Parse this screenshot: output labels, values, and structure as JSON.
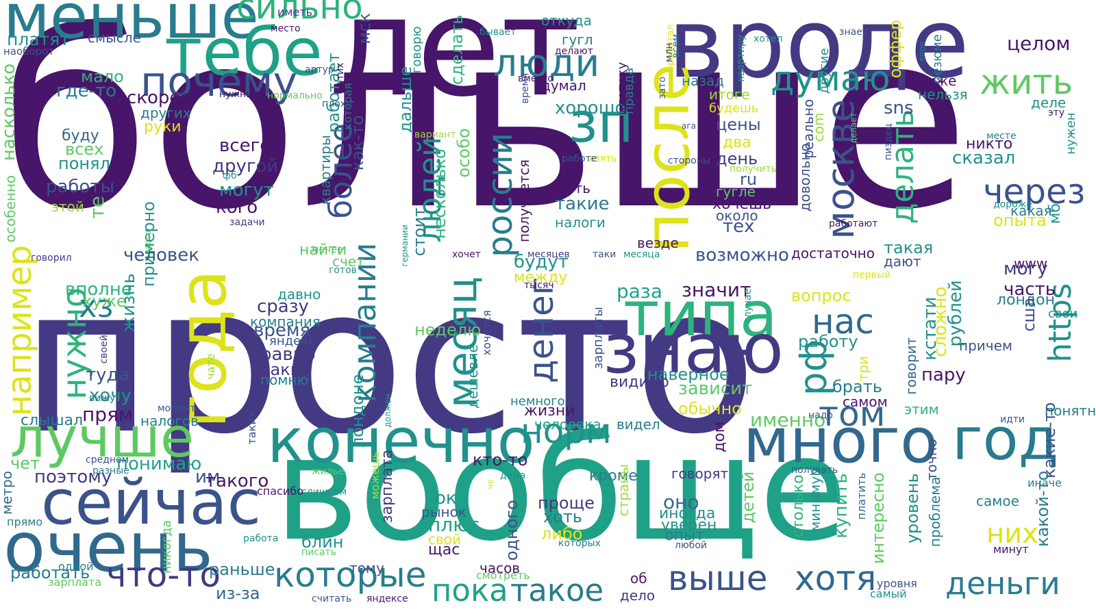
{
  "palette": {
    "dark_purple": "#471569",
    "indigo": "#443983",
    "slate_blue": "#3b528b",
    "steel_blue": "#31688e",
    "teal_blue": "#287c8e",
    "teal": "#21918c",
    "sea_green": "#1fa187",
    "green": "#2eb37c",
    "light_green": "#5ec962",
    "lime": "#a0da39",
    "yellow": "#dde318"
  },
  "words": [
    {
      "text": "просто",
      "c": "indigo"
    },
    {
      "text": "больше",
      "c": "dark_purple"
    },
    {
      "text": "вообще",
      "c": "sea_green"
    },
    {
      "text": "лет",
      "c": "dark_purple"
    },
    {
      "text": "вроде",
      "c": "indigo"
    },
    {
      "text": "меньше",
      "c": "teal_blue"
    },
    {
      "text": "тебе",
      "c": "sea_green"
    },
    {
      "text": "сильно",
      "c": "green"
    },
    {
      "text": "почему",
      "c": "slate_blue"
    },
    {
      "text": "люди",
      "c": "teal_blue"
    },
    {
      "text": "зп",
      "c": "teal"
    },
    {
      "text": "после",
      "c": "yellow"
    },
    {
      "text": "думаю",
      "c": "teal"
    },
    {
      "text": "жить",
      "c": "light_green"
    },
    {
      "text": "целом",
      "c": "dark_purple"
    },
    {
      "text": "типа",
      "c": "green"
    },
    {
      "text": "знаю",
      "c": "indigo"
    },
    {
      "text": "года",
      "c": "yellow"
    },
    {
      "text": "конечно",
      "c": "teal"
    },
    {
      "text": "много",
      "c": "steel_blue"
    },
    {
      "text": "год",
      "c": "teal_blue"
    },
    {
      "text": "лучше",
      "c": "light_green"
    },
    {
      "text": "сейчас",
      "c": "slate_blue"
    },
    {
      "text": "очень",
      "c": "steel_blue"
    },
    {
      "text": "москве",
      "c": "slate_blue"
    },
    {
      "text": "через",
      "c": "slate_blue"
    },
    {
      "text": "россии",
      "c": "teal_blue"
    },
    {
      "text": "месяц",
      "c": "teal"
    },
    {
      "text": "денег",
      "c": "slate_blue"
    },
    {
      "text": "нас",
      "c": "steel_blue"
    },
    {
      "text": "том",
      "c": "steel_blue"
    },
    {
      "text": "рф",
      "c": "teal"
    },
    {
      "text": "норм",
      "c": "teal"
    },
    {
      "text": "которые",
      "c": "teal_blue"
    },
    {
      "text": "пока",
      "c": "sea_green"
    },
    {
      "text": "такое",
      "c": "teal_blue"
    },
    {
      "text": "выше",
      "c": "slate_blue"
    },
    {
      "text": "хотя",
      "c": "steel_blue"
    },
    {
      "text": "деньги",
      "c": "teal_blue"
    },
    {
      "text": "что-то",
      "c": "indigo"
    },
    {
      "text": "например",
      "c": "yellow"
    },
    {
      "text": "нужно",
      "c": "green"
    },
    {
      "text": "компании",
      "c": "teal_blue"
    },
    {
      "text": "людей",
      "c": "teal"
    },
    {
      "text": "более",
      "c": "slate_blue"
    },
    {
      "text": "делать",
      "c": "green"
    },
    {
      "text": "https",
      "c": "teal"
    },
    {
      "text": "хз",
      "c": "teal_blue"
    },
    {
      "text": "платят",
      "c": "teal"
    },
    {
      "text": "смысле",
      "c": "slate_blue"
    },
    {
      "text": "наоборот",
      "c": "slate_blue"
    },
    {
      "text": "мало",
      "c": "green"
    },
    {
      "text": "где-то",
      "c": "teal_blue"
    },
    {
      "text": "скорее",
      "c": "dark_purple"
    },
    {
      "text": "других",
      "c": "teal_blue"
    },
    {
      "text": "руки",
      "c": "yellow"
    },
    {
      "text": "буду",
      "c": "steel_blue"
    },
    {
      "text": "всех",
      "c": "light_green"
    },
    {
      "text": "понял",
      "c": "teal"
    },
    {
      "text": "работы",
      "c": "slate_blue"
    },
    {
      "text": "те",
      "c": "light_green"
    },
    {
      "text": "этой",
      "c": "lime"
    },
    {
      "text": "насколько",
      "c": "light_green"
    },
    {
      "text": "особенно",
      "c": "light_green"
    },
    {
      "text": "примерно",
      "c": "teal"
    },
    {
      "text": "человек",
      "c": "slate_blue"
    },
    {
      "text": "вполне",
      "c": "green"
    },
    {
      "text": "хуже",
      "c": "light_green"
    },
    {
      "text": "жизнь",
      "c": "teal"
    },
    {
      "text": "туда",
      "c": "slate_blue"
    },
    {
      "text": "хочу",
      "c": "teal"
    },
    {
      "text": "прям",
      "c": "dark_purple"
    },
    {
      "text": "слышал",
      "c": "teal_blue"
    },
    {
      "text": "налогов",
      "c": "teal_blue"
    },
    {
      "text": "понимаю",
      "c": "sea_green"
    },
    {
      "text": "чет",
      "c": "light_green"
    },
    {
      "text": "поэтому",
      "c": "indigo"
    },
    {
      "text": "им",
      "c": "slate_blue"
    },
    {
      "text": "такого",
      "c": "dark_purple"
    },
    {
      "text": "работать",
      "c": "teal_blue"
    },
    {
      "text": "раньше",
      "c": "teal_blue"
    },
    {
      "text": "из-за",
      "c": "steel_blue"
    },
    {
      "text": "метро",
      "c": "steel_blue"
    },
    {
      "text": "прямо",
      "c": "teal_blue"
    },
    {
      "text": "одной",
      "c": "teal_blue"
    },
    {
      "text": "зарплата",
      "c": "light_green"
    },
    {
      "text": "никогда",
      "c": "light_green"
    },
    {
      "text": "работа",
      "c": "teal"
    },
    {
      "text": "писать",
      "c": "light_green"
    },
    {
      "text": "считать",
      "c": "slate_blue"
    },
    {
      "text": "яндексе",
      "c": "dark_purple"
    },
    {
      "text": "всего",
      "c": "dark_purple"
    },
    {
      "text": "другой",
      "c": "indigo"
    },
    {
      "text": "могут",
      "c": "teal"
    },
    {
      "text": "кого",
      "c": "dark_purple"
    },
    {
      "text": "сразу",
      "c": "indigo"
    },
    {
      "text": "время",
      "c": "slate_blue"
    },
    {
      "text": "равно",
      "c": "indigo"
    },
    {
      "text": "какие",
      "c": "indigo"
    },
    {
      "text": "помню",
      "c": "teal_blue"
    },
    {
      "text": "компания",
      "c": "teal_blue"
    },
    {
      "text": "яндекс",
      "c": "slate_blue"
    },
    {
      "text": "давно",
      "c": "teal"
    },
    {
      "text": "ок",
      "c": "teal"
    },
    {
      "text": "рынок",
      "c": "slate_blue"
    },
    {
      "text": "плюс",
      "c": "sea_green"
    },
    {
      "text": "блин",
      "c": "teal"
    },
    {
      "text": "свой",
      "c": "yellow"
    },
    {
      "text": "щас",
      "c": "dark_purple"
    },
    {
      "text": "тому",
      "c": "slate_blue"
    },
    {
      "text": "часов",
      "c": "dark_purple"
    },
    {
      "text": "смотреть",
      "c": "light_green"
    },
    {
      "text": "дело",
      "c": "indigo"
    },
    {
      "text": "об",
      "c": "dark_purple"
    },
    {
      "text": "проще",
      "c": "indigo"
    },
    {
      "text": "хоть",
      "c": "teal_blue"
    },
    {
      "text": "либо",
      "c": "yellow"
    },
    {
      "text": "которых",
      "c": "teal_blue"
    },
    {
      "text": "оно",
      "c": "steel_blue"
    },
    {
      "text": "иногда",
      "c": "teal"
    },
    {
      "text": "уверен",
      "c": "teal"
    },
    {
      "text": "опыт",
      "c": "teal_blue"
    },
    {
      "text": "любой",
      "c": "slate_blue"
    },
    {
      "text": "говорят",
      "c": "indigo"
    },
    {
      "text": "наверное",
      "c": "teal"
    },
    {
      "text": "зависит",
      "c": "light_green"
    },
    {
      "text": "обычно",
      "c": "yellow"
    },
    {
      "text": "видимо",
      "c": "indigo"
    },
    {
      "text": "значит",
      "c": "dark_purple"
    },
    {
      "text": "раза",
      "c": "sea_green"
    },
    {
      "text": "вопрос",
      "c": "yellow"
    },
    {
      "text": "работу",
      "c": "teal"
    },
    {
      "text": "брать",
      "c": "teal_blue"
    },
    {
      "text": "самом",
      "c": "dark_purple"
    },
    {
      "text": "пару",
      "c": "dark_purple"
    },
    {
      "text": "именно",
      "c": "light_green"
    },
    {
      "text": "будут",
      "c": "teal"
    },
    {
      "text": "между",
      "c": "yellow"
    },
    {
      "text": "тысяч",
      "c": "dark_purple"
    },
    {
      "text": "жизни",
      "c": "dark_purple"
    },
    {
      "text": "немного",
      "c": "teal_blue"
    },
    {
      "text": "человека",
      "c": "sea_green"
    },
    {
      "text": "видел",
      "c": "teal_blue"
    },
    {
      "text": "кроме",
      "c": "teal_blue"
    },
    {
      "text": "кто-то",
      "c": "dark_purple"
    },
    {
      "text": "хорошо",
      "c": "teal"
    },
    {
      "text": "цены",
      "c": "slate_blue"
    },
    {
      "text": "два",
      "c": "yellow"
    },
    {
      "text": "день",
      "c": "indigo"
    },
    {
      "text": "ru",
      "c": "slate_blue"
    },
    {
      "text": "гугле",
      "c": "light_green"
    },
    {
      "text": "хочешь",
      "c": "dark_purple"
    },
    {
      "text": "около",
      "c": "slate_blue"
    },
    {
      "text": "тех",
      "c": "slate_blue"
    },
    {
      "text": "чуть",
      "c": "dark_purple"
    },
    {
      "text": "такие",
      "c": "teal_blue"
    },
    {
      "text": "налоги",
      "c": "teal"
    },
    {
      "text": "возможно",
      "c": "slate_blue"
    },
    {
      "text": "достаточно",
      "c": "dark_purple"
    },
    {
      "text": "такая",
      "c": "teal"
    },
    {
      "text": "дают",
      "c": "slate_blue"
    },
    {
      "text": "вместо",
      "c": "dark_purple"
    },
    {
      "text": "думал",
      "c": "dark_purple"
    },
    {
      "text": "гугл",
      "c": "teal_blue"
    },
    {
      "text": "откуда",
      "c": "teal"
    },
    {
      "text": "бывает",
      "c": "teal"
    },
    {
      "text": "делают",
      "c": "dark_purple"
    },
    {
      "text": "ипотеку",
      "c": "dark_purple"
    },
    {
      "text": "правда",
      "c": "teal_blue"
    },
    {
      "text": "назад",
      "c": "teal_blue"
    },
    {
      "text": "итоге",
      "c": "lime"
    },
    {
      "text": "будешь",
      "c": "yellow"
    },
    {
      "text": "хотел",
      "c": "teal"
    },
    {
      "text": "квартиру",
      "c": "teal"
    },
    {
      "text": "знает",
      "c": "slate_blue"
    },
    {
      "text": "другие",
      "c": "teal"
    },
    {
      "text": "оффер",
      "c": "yellow"
    },
    {
      "text": "евро",
      "c": "teal_blue"
    },
    {
      "text": "резюме",
      "c": "teal_blue"
    },
    {
      "text": "ниже",
      "c": "dark_purple"
    },
    {
      "text": "нельзя",
      "c": "teal"
    },
    {
      "text": "деле",
      "c": "teal"
    },
    {
      "text": "эту",
      "c": "dark_purple"
    },
    {
      "text": "никто",
      "c": "dark_purple"
    },
    {
      "text": "сказал",
      "c": "teal"
    },
    {
      "text": "месте",
      "c": "teal_blue"
    },
    {
      "text": "нужен",
      "c": "teal"
    },
    {
      "text": "дороже",
      "c": "teal"
    },
    {
      "text": "какая",
      "c": "teal_blue"
    },
    {
      "text": "опыта",
      "c": "yellow"
    },
    {
      "text": "мб",
      "c": "teal"
    },
    {
      "text": "www",
      "c": "dark_purple"
    },
    {
      "text": "могу",
      "c": "indigo"
    },
    {
      "text": "часть",
      "c": "dark_purple"
    },
    {
      "text": "лондон",
      "c": "teal_blue"
    },
    {
      "text": "свои",
      "c": "teal"
    },
    {
      "text": "сша",
      "c": "slate_blue"
    },
    {
      "text": "понятно",
      "c": "teal_blue"
    },
    {
      "text": "этим",
      "c": "green"
    },
    {
      "text": "какие-то",
      "c": "slate_blue"
    },
    {
      "text": "иначе",
      "c": "teal_blue"
    },
    {
      "text": "самое",
      "c": "teal_blue"
    },
    {
      "text": "минут",
      "c": "dark_purple"
    },
    {
      "text": "какой-то",
      "c": "teal_blue"
    },
    {
      "text": "проблема",
      "c": "teal_blue"
    },
    {
      "text": "уровень",
      "c": "teal"
    },
    {
      "text": "уровня",
      "c": "slate_blue"
    },
    {
      "text": "самый",
      "c": "teal"
    },
    {
      "text": "них",
      "c": "yellow"
    },
    {
      "text": "кстати",
      "c": "teal"
    },
    {
      "text": "рублей",
      "c": "teal"
    },
    {
      "text": "причем",
      "c": "slate_blue"
    },
    {
      "text": "говорит",
      "c": "steel_blue"
    },
    {
      "text": "сложно",
      "c": "yellow"
    },
    {
      "text": "три",
      "c": "yellow"
    },
    {
      "text": "первый",
      "c": "yellow"
    },
    {
      "text": "стоит",
      "c": "teal_blue"
    },
    {
      "text": "несколько",
      "c": "green"
    },
    {
      "text": "как-то",
      "c": "slate_blue"
    },
    {
      "text": "квартиры",
      "c": "teal_blue"
    },
    {
      "text": "работает",
      "c": "teal"
    },
    {
      "text": "этих",
      "c": "dark_purple"
    },
    {
      "text": "которая",
      "c": "teal_blue"
    },
    {
      "text": "мск",
      "c": "slate_blue"
    },
    {
      "text": "дальше",
      "c": "teal"
    },
    {
      "text": "говорю",
      "c": "teal"
    },
    {
      "text": "сделать",
      "c": "green"
    },
    {
      "text": "особо",
      "c": "light_green"
    },
    {
      "text": "найти",
      "c": "light_green"
    },
    {
      "text": "счет",
      "c": "light_green"
    },
    {
      "text": "готов",
      "c": "teal"
    },
    {
      "text": "менее",
      "c": "light_green"
    },
    {
      "text": "германии",
      "c": "teal"
    },
    {
      "text": "хочет",
      "c": "dark_purple"
    },
    {
      "text": "месяцев",
      "c": "indigo"
    },
    {
      "text": "таки",
      "c": "slate_blue"
    },
    {
      "text": "месяца",
      "c": "teal"
    },
    {
      "text": "везде",
      "c": "dark_purple"
    },
    {
      "text": "получается",
      "c": "dark_purple"
    },
    {
      "text": "ага",
      "c": "slate_blue"
    },
    {
      "text": "зато",
      "c": "slate_blue"
    },
    {
      "text": "стороны",
      "c": "slate_blue"
    },
    {
      "text": "взять",
      "c": "yellow"
    },
    {
      "text": "работе",
      "c": "slate_blue"
    },
    {
      "text": "вариант",
      "c": "lime"
    },
    {
      "text": "время2",
      "c": "slate_blue"
    },
    {
      "text": "реально",
      "c": "slate_blue"
    },
    {
      "text": "com",
      "c": "lime"
    },
    {
      "text": "довольно",
      "c": "slate_blue"
    },
    {
      "text": "пиздец",
      "c": "slate_blue"
    },
    {
      "text": "работают",
      "c": "dark_purple"
    },
    {
      "text": "делает",
      "c": "light_green"
    },
    {
      "text": "получить",
      "c": "lime"
    },
    {
      "text": "работал",
      "c": "yellow"
    },
    {
      "text": "всем",
      "c": "teal_blue"
    },
    {
      "text": "млн",
      "c": "indigo"
    },
    {
      "text": "sns",
      "c": "slate_blue"
    },
    {
      "text": "иметь",
      "c": "indigo"
    },
    {
      "text": "место",
      "c": "dark_purple"
    },
    {
      "text": "артур",
      "c": "slate_blue"
    },
    {
      "text": "нужны",
      "c": "dark_purple"
    },
    {
      "text": "нормально",
      "c": "light_green"
    },
    {
      "text": "плохо",
      "c": "slate_blue"
    },
    {
      "text": "фб",
      "c": "teal"
    },
    {
      "text": "задачи",
      "c": "indigo"
    },
    {
      "text": "часто",
      "c": "light_green"
    },
    {
      "text": "говорил",
      "c": "indigo"
    },
    {
      "text": "своей",
      "c": "indigo"
    },
    {
      "text": "вижу",
      "c": "teal_blue"
    },
    {
      "text": "момент",
      "c": "slate_blue"
    },
    {
      "text": "среднем",
      "c": "slate_blue"
    },
    {
      "text": "разные",
      "c": "teal_blue"
    },
    {
      "text": "жилье",
      "c": "light_green"
    },
    {
      "text": "слишком",
      "c": "teal"
    },
    {
      "text": "спасибо",
      "c": "dark_purple"
    },
    {
      "text": "чате",
      "c": "lime"
    },
    {
      "text": "таких",
      "c": "slate_blue"
    },
    {
      "text": "должен",
      "c": "teal"
    },
    {
      "text": "лондоне",
      "c": "teal"
    },
    {
      "text": "можешь",
      "c": "lime"
    },
    {
      "text": "зарплата2",
      "c": "indigo"
    },
    {
      "text": "одного",
      "c": "slate_blue"
    },
    {
      "text": "че",
      "c": "yellow"
    },
    {
      "text": "дома",
      "c": "teal"
    },
    {
      "text": "неделю",
      "c": "light_green"
    },
    {
      "text": "дешевле",
      "c": "teal"
    },
    {
      "text": "хочется",
      "c": "slate_blue"
    },
    {
      "text": "зарплаты",
      "c": "slate_blue"
    },
    {
      "text": "случае",
      "c": "teal"
    },
    {
      "text": "детей",
      "c": "light_green"
    },
    {
      "text": "столько",
      "c": "green"
    },
    {
      "text": "минимум",
      "c": "teal"
    },
    {
      "text": "купить",
      "c": "green"
    },
    {
      "text": "платить",
      "c": "steel_blue"
    },
    {
      "text": "интересно",
      "c": "light_green"
    },
    {
      "text": "точно",
      "c": "slate_blue"
    },
    {
      "text": "страны",
      "c": "lime"
    },
    {
      "text": "дом",
      "c": "dark_purple"
    },
    {
      "text": "получать",
      "c": "slate_blue"
    },
    {
      "text": "надо",
      "c": "slate_blue"
    },
    {
      "text": "идти",
      "c": "slate_blue"
    }
  ]
}
